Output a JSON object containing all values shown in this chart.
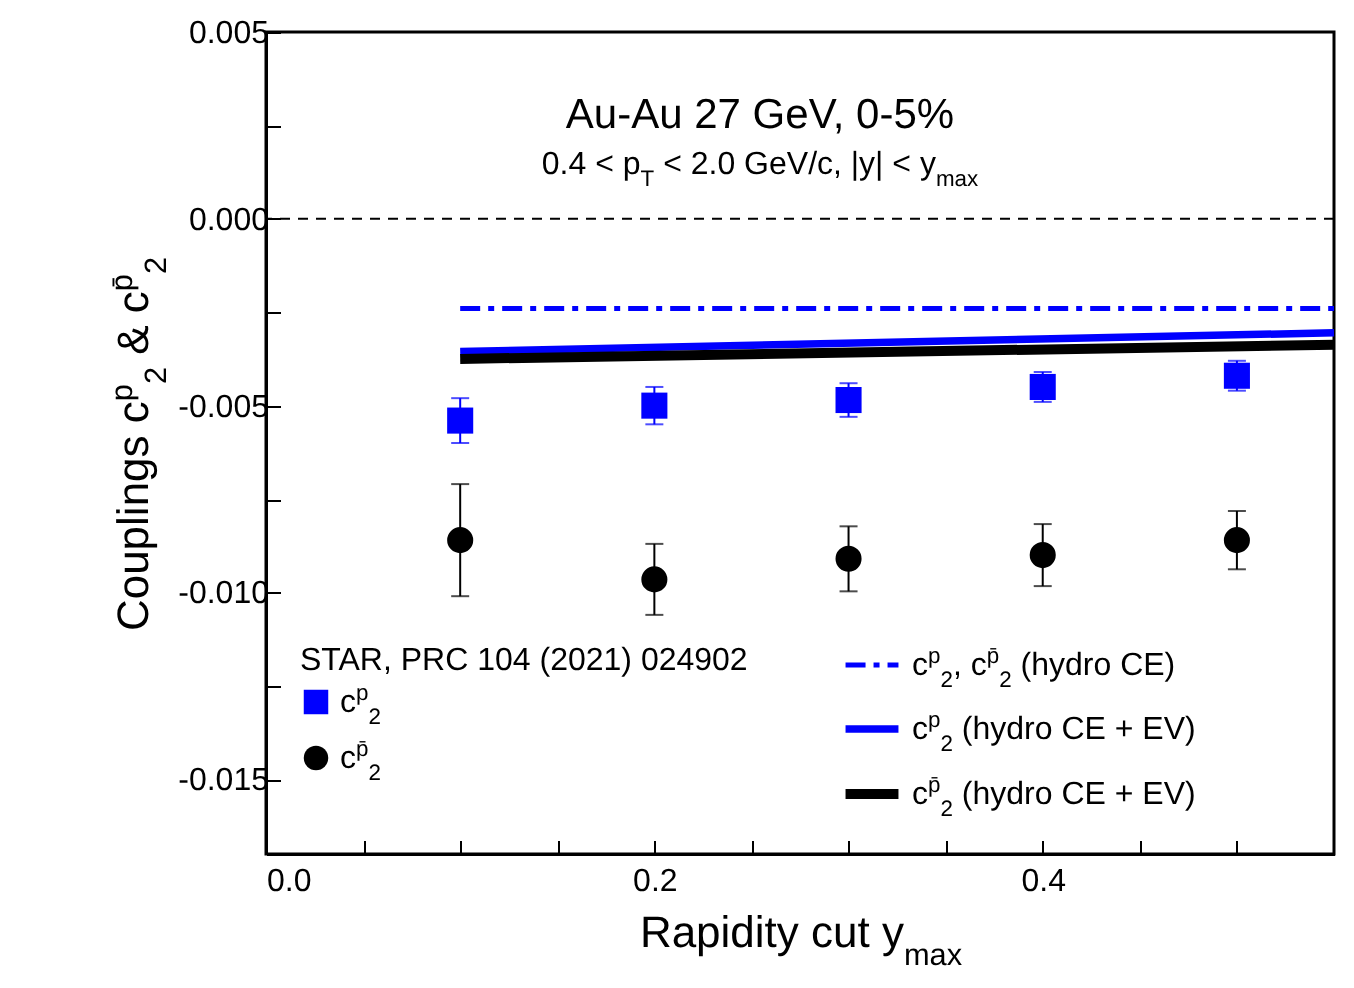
{
  "chart_data": {
    "type": "scatter",
    "title": "Au-Au 27 GeV, 0-5%",
    "subtitle": "0.4 < p$_{T}$ < 2.0 GeV/c, |y| < y$_{max}$",
    "xlabel": "Rapidity cut y$_{max}$",
    "ylabel": "Couplings c$^{p}$$_{2}$ & c$^{p̄}$$_{2}$",
    "legend_title": "STAR, PRC 104 (2021) 024902",
    "legend": "bottom",
    "xlim": [
      0,
      0.55
    ],
    "xticks": [
      {
        "value": 0,
        "label": "0.0"
      },
      {
        "value": 0.05,
        "label": null
      },
      {
        "value": 0.1,
        "label": null
      },
      {
        "value": 0.15,
        "label": null
      },
      {
        "value": 0.2,
        "label": "0.2"
      },
      {
        "value": 0.25,
        "label": null
      },
      {
        "value": 0.3,
        "label": null
      },
      {
        "value": 0.35,
        "label": null
      },
      {
        "value": 0.4,
        "label": "0.4"
      },
      {
        "value": 0.45,
        "label": null
      },
      {
        "value": 0.5,
        "label": null
      }
    ],
    "ylim": [
      -0.017,
      0.005
    ],
    "yticks": [
      {
        "value": 0.005,
        "label": "0.005"
      },
      {
        "value": 0.0025,
        "label": null
      },
      {
        "value": 0,
        "label": "0.000"
      },
      {
        "value": -0.0025,
        "label": null
      },
      {
        "value": -0.005,
        "label": "-0.005"
      },
      {
        "value": -0.0075,
        "label": null
      },
      {
        "value": -0.01,
        "label": "-0.010"
      },
      {
        "value": -0.0125,
        "label": null
      },
      {
        "value": -0.015,
        "label": "-0.015"
      }
    ],
    "ref_lines": [
      {
        "axis": "y",
        "value": 0,
        "line_style": "dashed",
        "color": "#000000"
      }
    ],
    "series": [
      {
        "name": "c$^{p}$$_{2}$",
        "marker": "square",
        "color": "#0000ff",
        "x": [
          0.1,
          0.2,
          0.3,
          0.4,
          0.5
        ],
        "values": [
          -0.0054,
          -0.005,
          -0.00485,
          -0.0045,
          -0.0042
        ],
        "errors": [
          0.0006,
          0.0005,
          0.00045,
          0.0004,
          0.0004
        ]
      },
      {
        "name": "c$^{p̄}$$_{2}$",
        "marker": "circle",
        "color": "#000000",
        "x": [
          0.1,
          0.2,
          0.3,
          0.4,
          0.5
        ],
        "values": [
          -0.0086,
          -0.00965,
          -0.0091,
          -0.009,
          -0.0086
        ],
        "errors": [
          0.0015,
          0.00095,
          0.00087,
          0.00083,
          0.00078
        ]
      },
      {
        "name": "c$^{p}$$_{2}$, c$^{p̄}$$_{2}$ (hydro CE)",
        "type": "line",
        "line_style": "dashed",
        "color": "#0000ff",
        "x": [
          0.1,
          0.55
        ],
        "values": [
          -0.0024,
          -0.0024
        ]
      },
      {
        "name": "c$^{p}$$_{2}$ (hydro CE + EV)",
        "type": "line",
        "line_style": "solid",
        "color": "#0000ff",
        "x": [
          0.1,
          0.55
        ],
        "values": [
          -0.00355,
          -0.00305
        ]
      },
      {
        "name": "c$^{p̄}$$_{2}$ (hydro CE + EV)",
        "type": "line",
        "line_style": "solid",
        "color": "#000000",
        "x": [
          0.1,
          0.55
        ],
        "values": [
          -0.00375,
          -0.00337
        ]
      }
    ]
  }
}
